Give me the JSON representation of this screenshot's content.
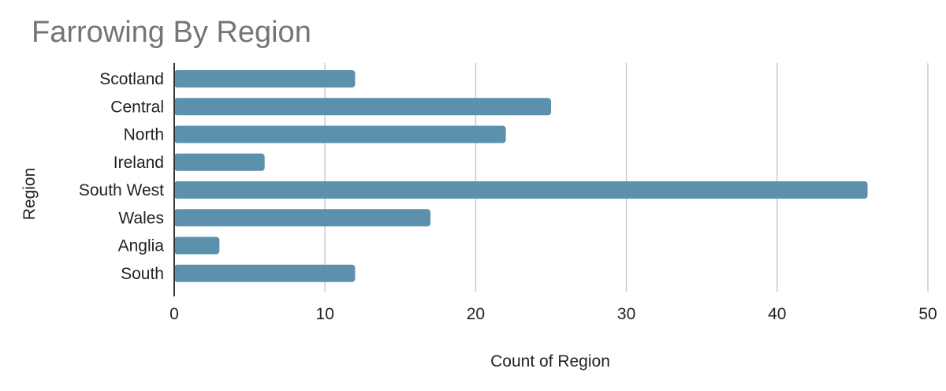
{
  "chart_data": {
    "type": "bar",
    "orientation": "horizontal",
    "title": "Farrowing By Region",
    "xlabel": "Count of Region",
    "ylabel": "Region",
    "categories": [
      "Scotland",
      "Central",
      "North",
      "Ireland",
      "South West",
      "Wales",
      "Anglia",
      "South"
    ],
    "values": [
      12,
      25,
      22,
      6,
      46,
      17,
      3,
      12
    ],
    "xlim": [
      0,
      50
    ],
    "xticks": [
      0,
      10,
      20,
      30,
      40,
      50
    ],
    "grid": "vertical",
    "legend": "none",
    "colors": {
      "bar": "#5b91ad",
      "title": "#757575",
      "grid": "#cccccc",
      "axis": "#333333",
      "text": "#222222"
    }
  }
}
